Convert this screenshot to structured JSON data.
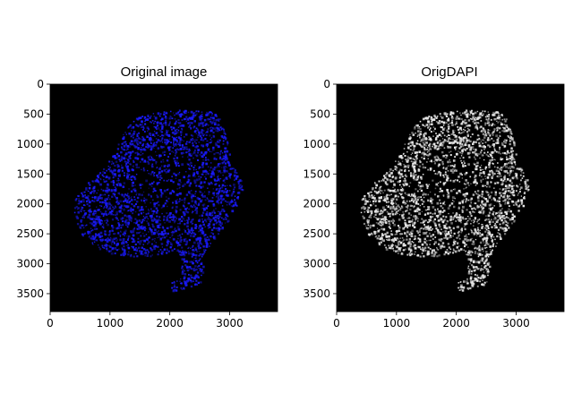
{
  "panels": [
    {
      "title": "Original image",
      "colormap": "blue",
      "x_ticks": [
        "0",
        "1000",
        "2000",
        "3000"
      ],
      "y_ticks": [
        "0",
        "500",
        "1000",
        "1500",
        "2000",
        "2500",
        "3000",
        "3500"
      ],
      "x_tick_values": [
        0,
        1000,
        2000,
        3000
      ],
      "y_tick_values": [
        0,
        500,
        1000,
        1500,
        2000,
        2500,
        3000,
        3500
      ],
      "xlim": [
        0,
        3800
      ],
      "ylim": [
        0,
        3800
      ]
    },
    {
      "title": "OrigDAPI",
      "colormap": "gray",
      "x_ticks": [
        "0",
        "1000",
        "2000",
        "3000"
      ],
      "y_ticks": [
        "0",
        "500",
        "1000",
        "1500",
        "2000",
        "2500",
        "3000",
        "3500"
      ],
      "x_tick_values": [
        0,
        1000,
        2000,
        3000
      ],
      "y_tick_values": [
        0,
        500,
        1000,
        1500,
        2000,
        2500,
        3000,
        3500
      ],
      "xlim": [
        0,
        3800
      ],
      "ylim": [
        0,
        3800
      ]
    }
  ],
  "colors": {
    "background": "#000000",
    "blue_stain": "#1a1aff",
    "gray_stain": "#e6e6e6"
  }
}
